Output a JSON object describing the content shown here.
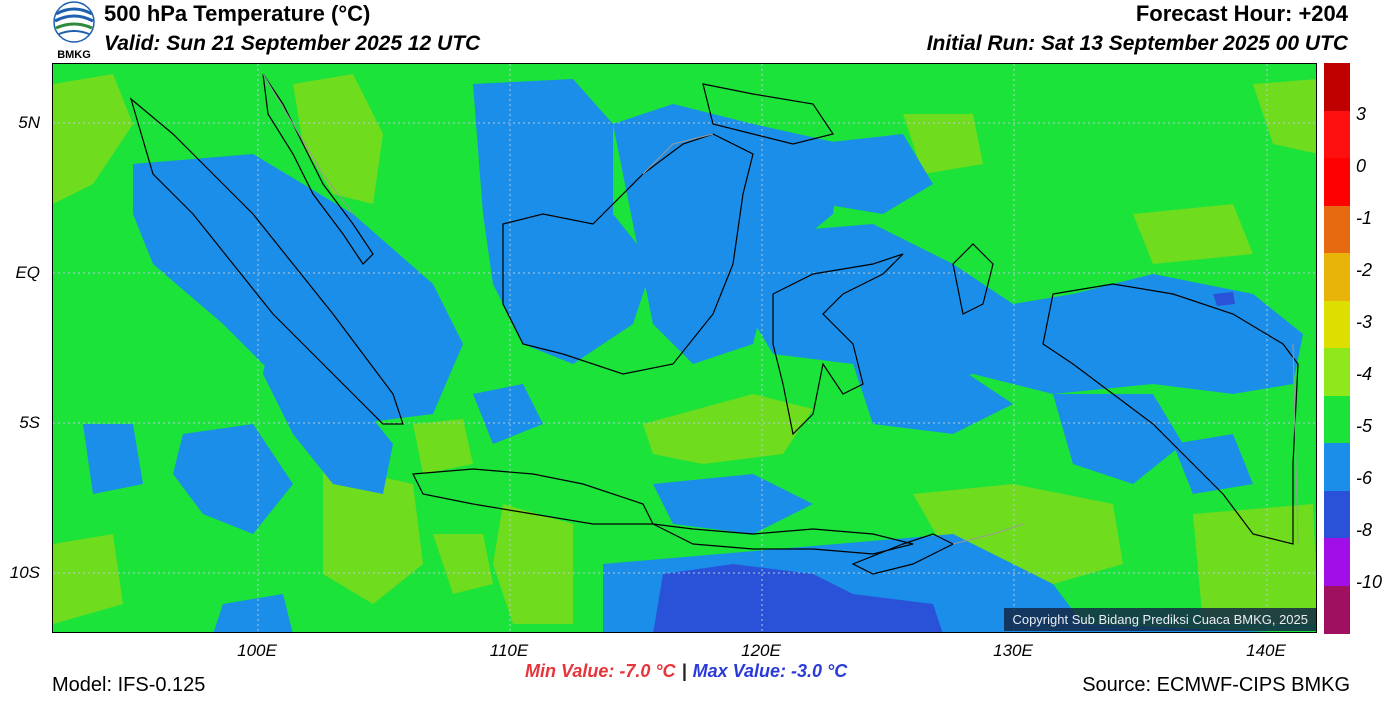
{
  "header": {
    "title": "500 hPa Temperature (°C)",
    "valid": "Valid: Sun 21 September 2025 12 UTC",
    "forecast_hour": "Forecast Hour: +204",
    "initial_run": "Initial Run: Sat 13 September 2025 00 UTC",
    "logo_text": "BMKG"
  },
  "map": {
    "lat_labels": [
      "5N",
      "EQ",
      "5S",
      "10S"
    ],
    "lon_labels": [
      "100E",
      "110E",
      "120E",
      "130E",
      "140E"
    ],
    "copyright": "Copyright Sub Bidang Prediksi Cuaca BMKG, 2025",
    "colors": {
      "background": "#1be33a",
      "cold": "#1a8ee8",
      "colder": "#2a52d8",
      "warm": "#6fdc1e",
      "coast": "#000000"
    }
  },
  "colorbar": {
    "labels": [
      "3",
      "0",
      "-1",
      "-2",
      "-3",
      "-4",
      "-5",
      "-6",
      "-8",
      "-10"
    ],
    "colors": [
      "#c00000",
      "#ff1010",
      "#ff0000",
      "#e86a10",
      "#e8b40a",
      "#dede00",
      "#8ee81a",
      "#1be33a",
      "#1a8ee8",
      "#2a52d8",
      "#a20ee8",
      "#a01060"
    ]
  },
  "footer": {
    "min_value": "Min Value: -7.0 °C",
    "separator": "|",
    "max_value": "Max Value: -3.0 °C",
    "model": "Model: IFS-0.125",
    "source": "Source: ECMWF-CIPS BMKG"
  }
}
